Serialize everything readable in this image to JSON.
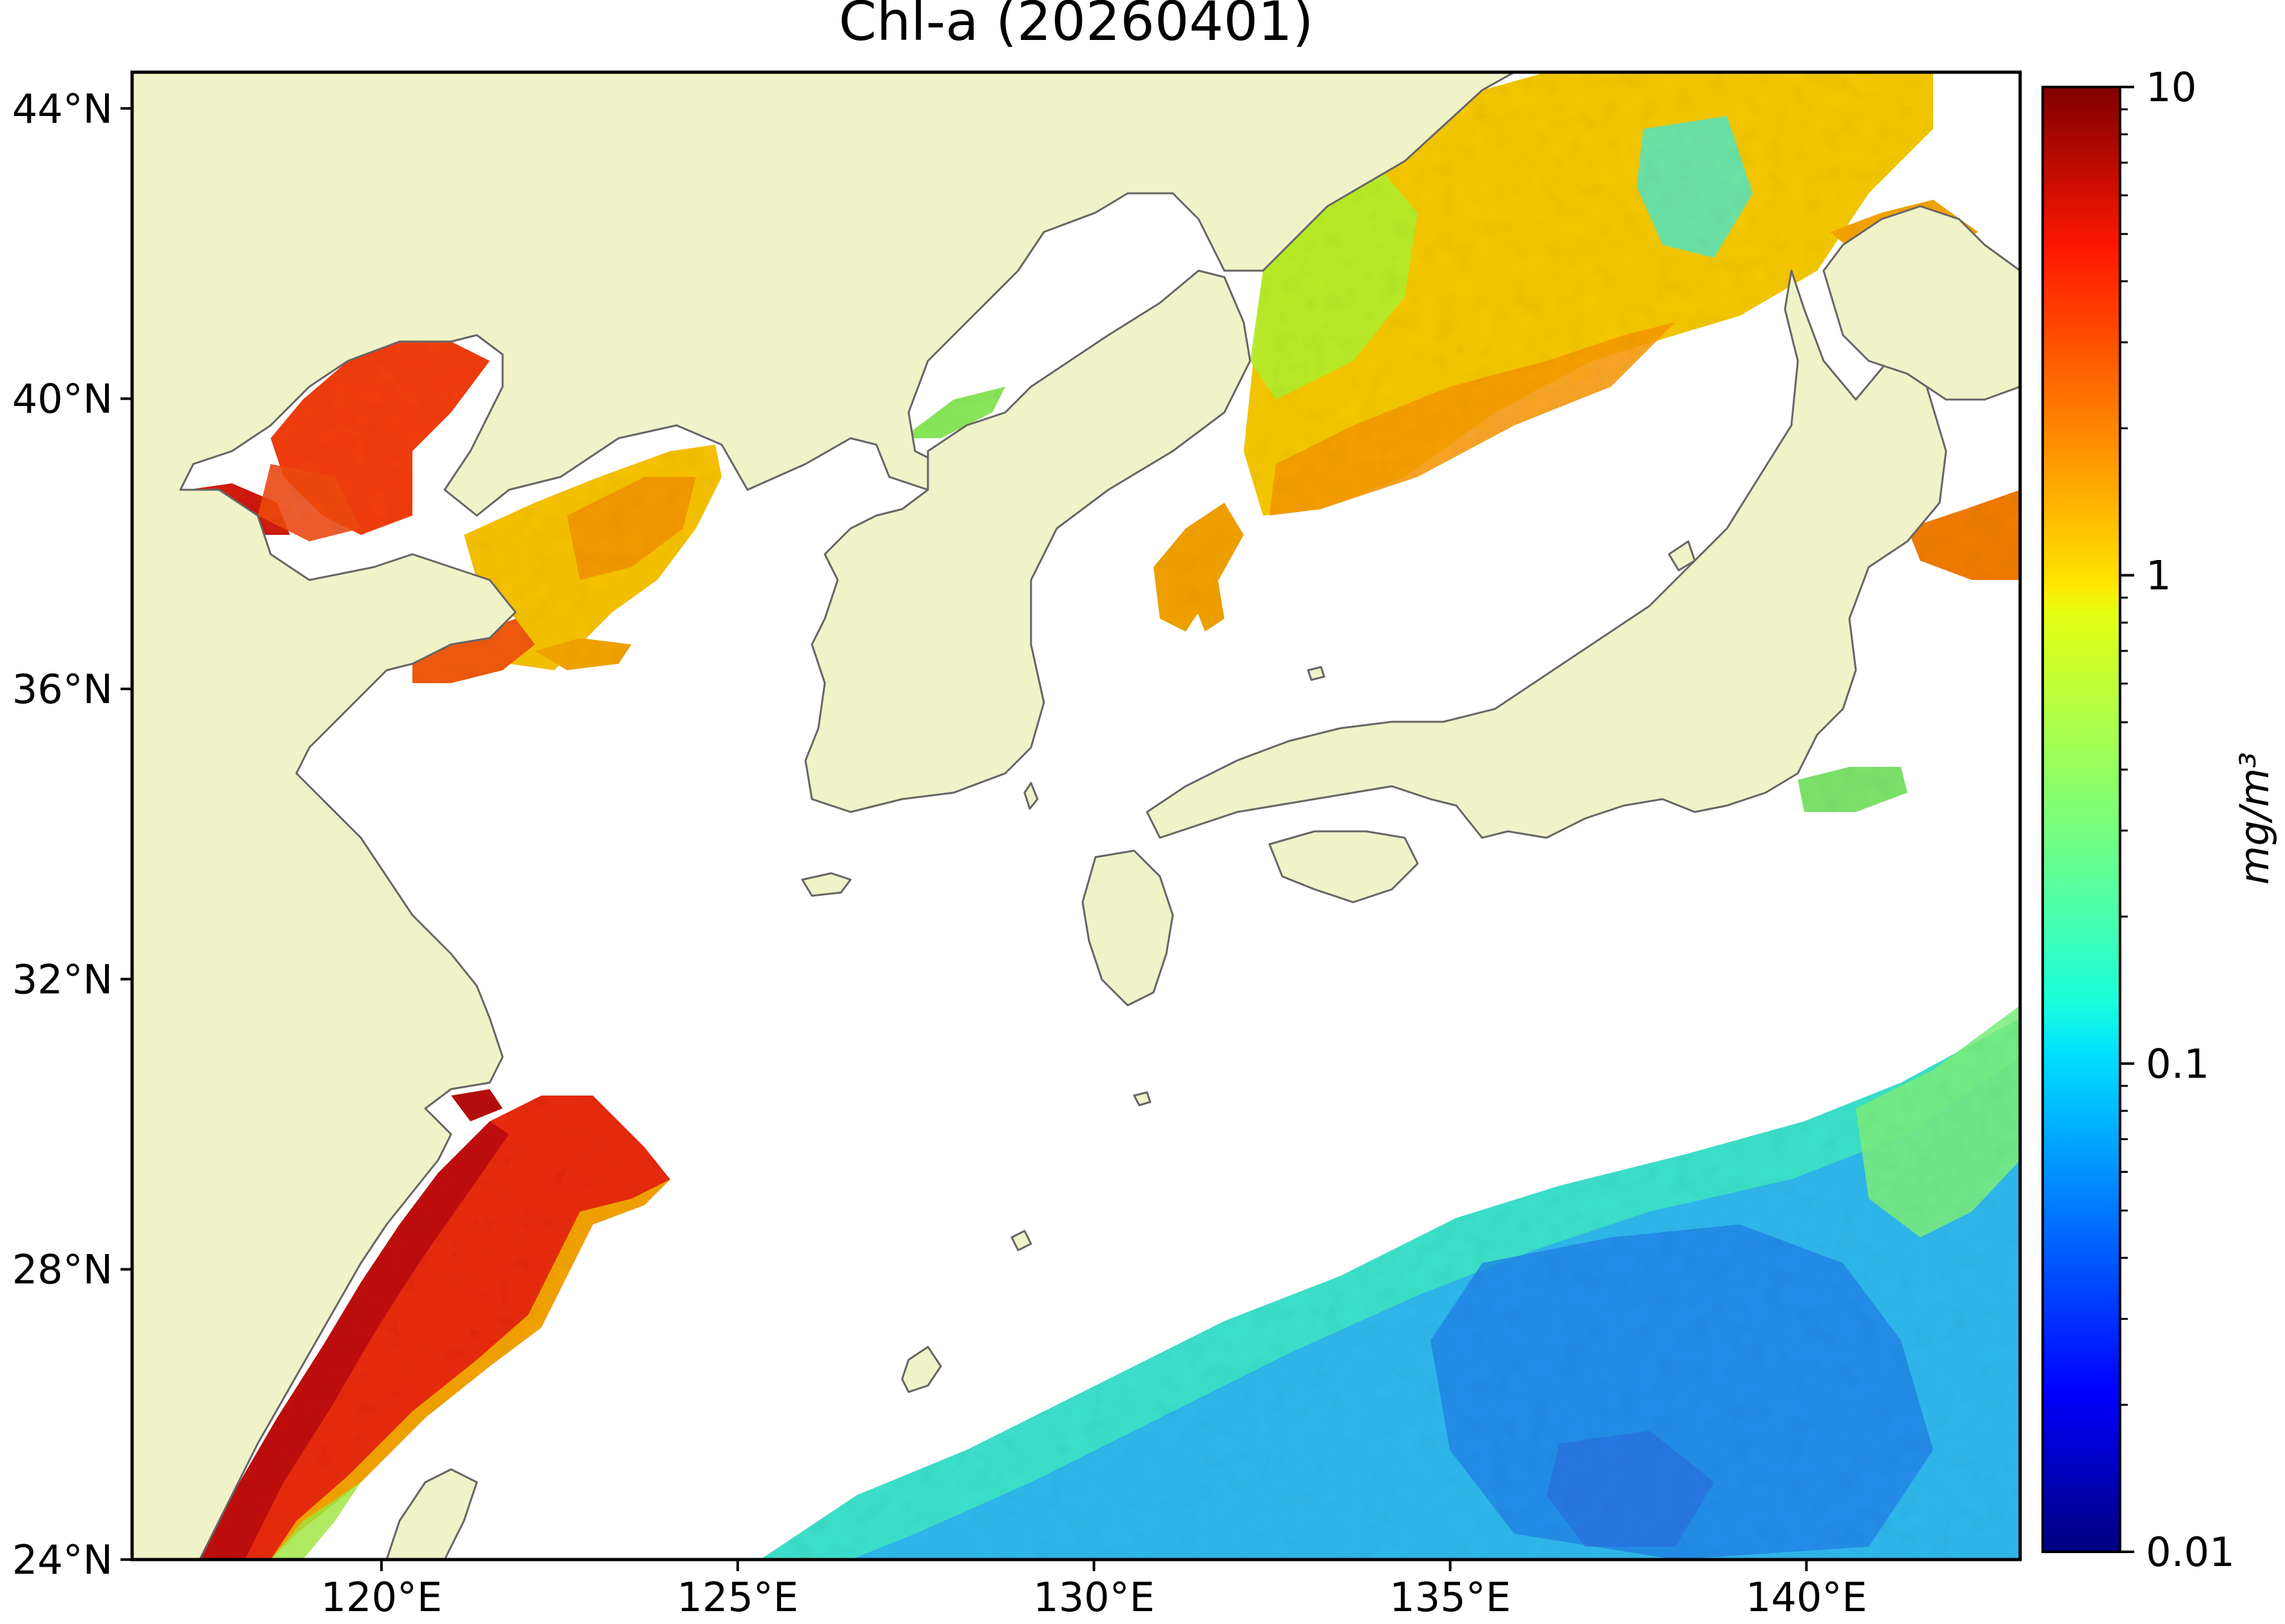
{
  "title": "Chl-a (20260401)",
  "map": {
    "extent": {
      "lon": [
        116.5,
        143.0
      ],
      "lat": [
        24.0,
        44.5
      ]
    },
    "land_color": "#f0f2c8",
    "ocean_nodata_color": "#ffffff",
    "coastline_color": "#666666",
    "lat_ticks": [
      {
        "value": 44,
        "label": "44°N"
      },
      {
        "value": 40,
        "label": "40°N"
      },
      {
        "value": 36,
        "label": "36°N"
      },
      {
        "value": 32,
        "label": "32°N"
      },
      {
        "value": 28,
        "label": "28°N"
      },
      {
        "value": 24,
        "label": "24°N"
      }
    ],
    "lon_ticks": [
      {
        "value": 120,
        "label": "120°E"
      },
      {
        "value": 125,
        "label": "125°E"
      },
      {
        "value": 130,
        "label": "130°E"
      },
      {
        "value": 135,
        "label": "135°E"
      },
      {
        "value": 140,
        "label": "140°E"
      }
    ]
  },
  "colorbar": {
    "label": "mg/m³",
    "scale": "log",
    "range": [
      0.01,
      10
    ],
    "colormap": "jet",
    "ticks": [
      {
        "value": 10,
        "label": "10"
      },
      {
        "value": 1,
        "label": "1"
      },
      {
        "value": 0.1,
        "label": "0.1"
      },
      {
        "value": 0.01,
        "label": "0.01"
      }
    ]
  }
}
